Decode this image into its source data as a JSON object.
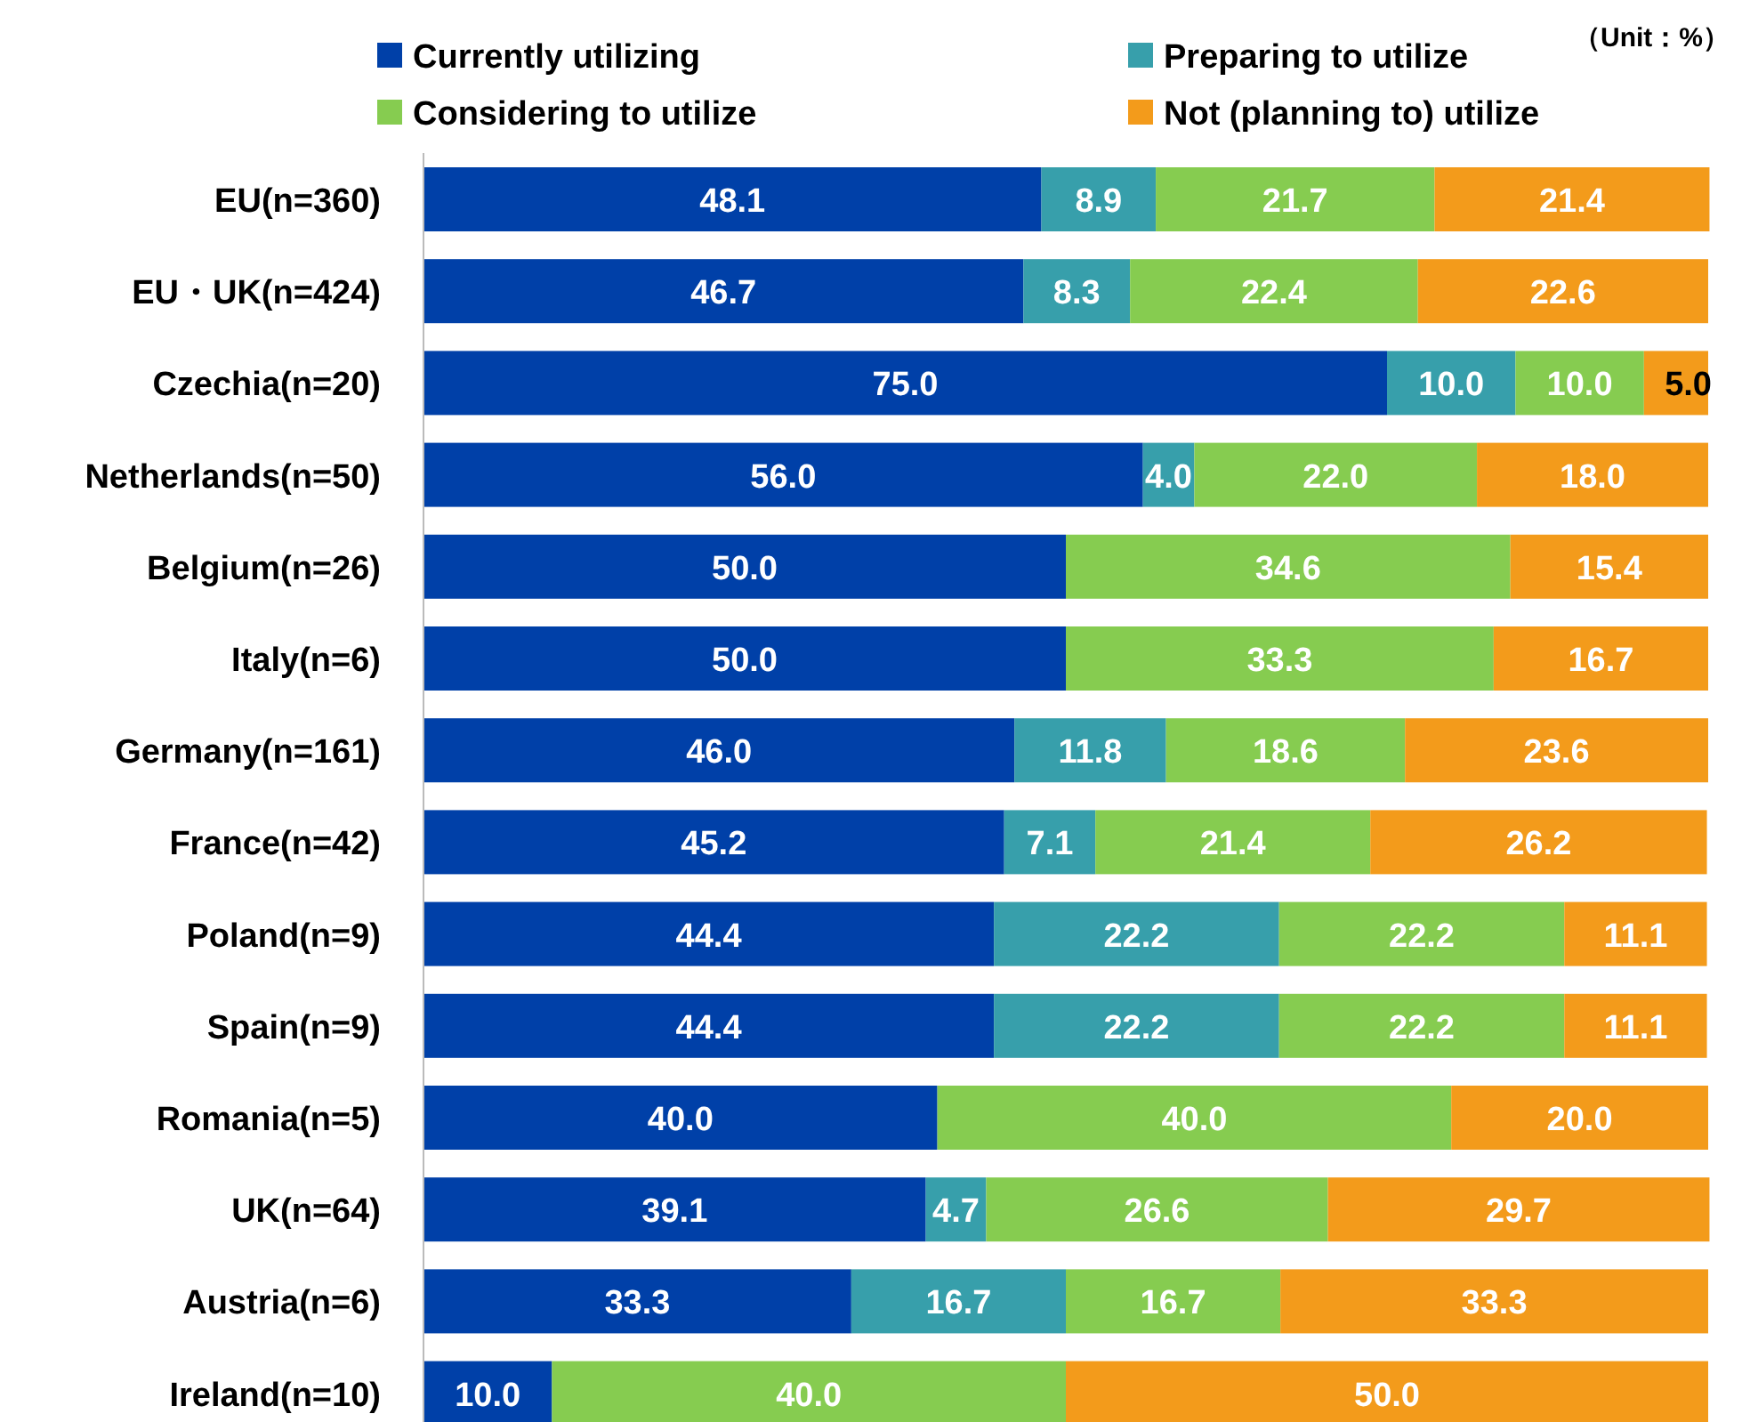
{
  "chart_data": {
    "type": "bar",
    "orientation": "horizontal",
    "stacked": true,
    "legend": "top",
    "xlim": [
      0,
      100
    ],
    "tick_labels": "y",
    "annotations": [
      "（Unit：%）"
    ],
    "categories": [
      "EU(n=360)",
      "EU・UK(n=424)",
      "Czechia(n=20)",
      "Netherlands(n=50)",
      "Belgium(n=26)",
      "Italy(n=6)",
      "Germany(n=161)",
      "France(n=42)",
      "Poland(n=9)",
      "Spain(n=9)",
      "Romania(n=5)",
      "UK(n=64)",
      "Austria(n=6)",
      "Ireland(n=10)"
    ],
    "series": [
      {
        "name": "Currently utilizing",
        "color": "#0040a8",
        "values": [
          48.1,
          46.7,
          75.0,
          56.0,
          50.0,
          50.0,
          46.0,
          45.2,
          44.4,
          44.4,
          40.0,
          39.1,
          33.3,
          10.0
        ],
        "value_labels": [
          "48.1",
          "46.7",
          "75.0",
          "56.0",
          "50.0",
          "50.0",
          "46.0",
          "45.2",
          "44.4",
          "44.4",
          "40.0",
          "39.1",
          "33.3",
          "10.0"
        ]
      },
      {
        "name": "Preparing to utilize",
        "color": "#379fab",
        "values": [
          8.9,
          8.3,
          10.0,
          4.0,
          null,
          null,
          11.8,
          7.1,
          22.2,
          22.2,
          null,
          4.7,
          16.7,
          null
        ],
        "value_labels": [
          "8.9",
          "8.3",
          "10.0",
          "4.0",
          null,
          null,
          "11.8",
          "7.1",
          "22.2",
          "22.2",
          null,
          "4.7",
          "16.7",
          null
        ]
      },
      {
        "name": "Considering to utilize",
        "color": "#86cc50",
        "values": [
          21.7,
          22.4,
          10.0,
          22.0,
          34.6,
          33.3,
          18.6,
          21.4,
          22.2,
          22.2,
          40.0,
          26.6,
          16.7,
          40.0
        ],
        "value_labels": [
          "21.7",
          "22.4",
          "10.0",
          "22.0",
          "34.6",
          "33.3",
          "18.6",
          "21.4",
          "22.2",
          "22.2",
          "40.0",
          "26.6",
          "16.7",
          "40.0"
        ]
      },
      {
        "name": "Not (planning to) utilize",
        "color": "#f39b1b",
        "values": [
          21.4,
          22.6,
          5.0,
          18.0,
          15.4,
          16.7,
          23.6,
          26.2,
          11.1,
          11.1,
          20.0,
          29.7,
          33.3,
          50.0
        ],
        "value_labels": [
          "21.4",
          "22.6",
          "5.0",
          "18.0",
          "15.4",
          "16.7",
          "23.6",
          "26.2",
          "11.1",
          "11.1",
          "20.0",
          "29.7",
          "33.3",
          "50.0"
        ]
      }
    ]
  }
}
